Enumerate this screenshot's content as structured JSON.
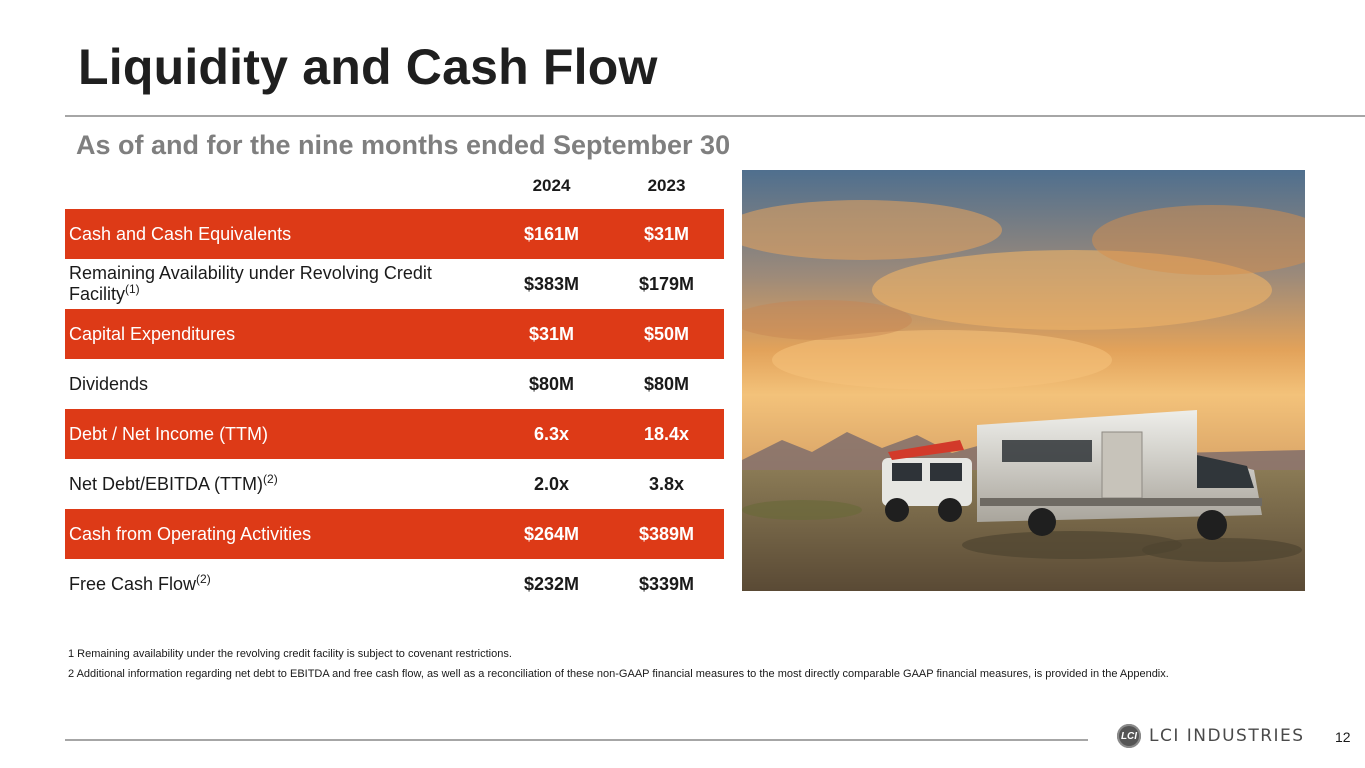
{
  "slide": {
    "title": "Liquidity and Cash Flow",
    "subtitle": "As of and for the nine months ended September 30",
    "page_number": "12"
  },
  "table": {
    "headers": [
      "2024",
      "2023"
    ],
    "rows": [
      {
        "label": "Cash and Cash Equivalents",
        "sup": "",
        "v2024": "$161M",
        "v2023": "$31M",
        "highlight": true
      },
      {
        "label": "Remaining Availability under Revolving Credit Facility",
        "sup": "(1)",
        "v2024": "$383M",
        "v2023": "$179M",
        "highlight": false
      },
      {
        "label": "Capital Expenditures",
        "sup": "",
        "v2024": "$31M",
        "v2023": "$50M",
        "highlight": true
      },
      {
        "label": "Dividends",
        "sup": "",
        "v2024": "$80M",
        "v2023": "$80M",
        "highlight": false
      },
      {
        "label": "Debt / Net Income (TTM)",
        "sup": "",
        "v2024": "6.3x",
        "v2023": "18.4x",
        "highlight": true
      },
      {
        "label": "Net Debt/EBITDA (TTM)",
        "sup": "(2)",
        "v2024": "2.0x",
        "v2023": "3.8x",
        "highlight": false
      },
      {
        "label": "Cash from Operating Activities",
        "sup": "",
        "v2024": "$264M",
        "v2023": "$389M",
        "highlight": true
      },
      {
        "label": "Free Cash Flow",
        "sup": "(2)",
        "v2024": "$232M",
        "v2023": "$339M",
        "highlight": false
      }
    ]
  },
  "footnotes": [
    "1 Remaining availability under the revolving credit facility is subject to covenant restrictions.",
    "2 Additional information regarding net debt to EBITDA and free cash flow, as well as a reconciliation of these non-GAAP financial measures to the most directly comparable GAAP financial measures, is provided in the Appendix."
  ],
  "logo": {
    "text": "LCI INDUSTRIES",
    "mark": "LCI"
  },
  "colors": {
    "accent": "#dd3a17",
    "title": "#1f1f1f",
    "subtitle": "#7f7f7f",
    "rule": "#a6a6a6"
  }
}
